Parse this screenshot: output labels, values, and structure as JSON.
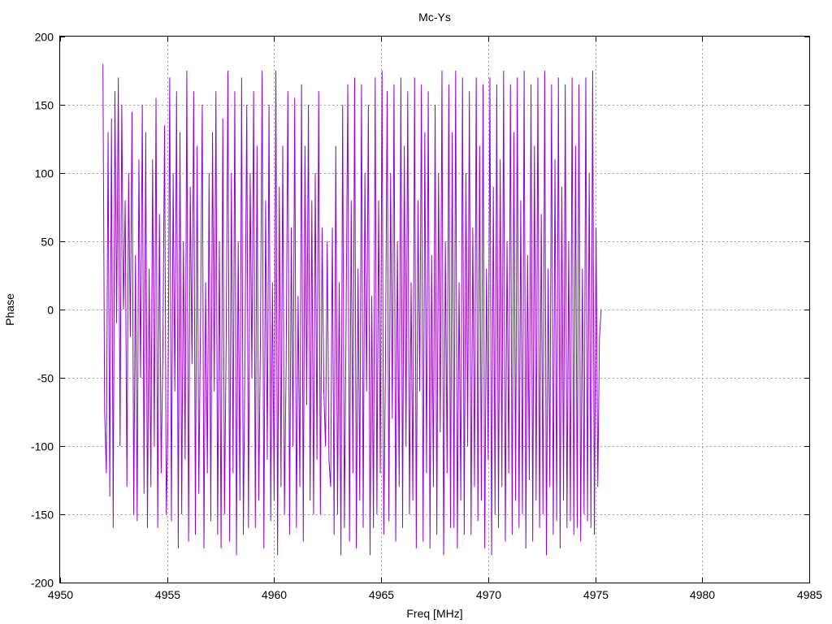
{
  "chart_data": {
    "type": "line",
    "title": "Mc-Ys",
    "xlabel": "Freq [MHz]",
    "ylabel": "Phase",
    "xlim": [
      4950,
      4985
    ],
    "ylim": [
      -200,
      200
    ],
    "x_ticks": [
      4950,
      4955,
      4960,
      4965,
      4970,
      4975,
      4980,
      4985
    ],
    "y_ticks": [
      -200,
      -150,
      -100,
      -50,
      0,
      50,
      100,
      150,
      200
    ],
    "grid": true,
    "legend": "none",
    "series": [
      {
        "color": "#9400d3",
        "x_start": 4952.0,
        "x_step": 0.08,
        "values": [
          180,
          -75,
          -120,
          130,
          -137,
          140,
          -160,
          160,
          -10,
          170,
          -100,
          150,
          0,
          80,
          -130,
          100,
          -20,
          145,
          -150,
          40,
          -155,
          110,
          -50,
          150,
          -135,
          130,
          -160,
          30,
          -130,
          110,
          -100,
          155,
          -160,
          70,
          -120,
          -30,
          135,
          -150,
          -80,
          170,
          -155,
          100,
          -60,
          160,
          -175,
          130,
          -150,
          50,
          -110,
          175,
          -170,
          90,
          -40,
          160,
          -165,
          120,
          -135,
          -10,
          150,
          -175,
          20,
          -120,
          100,
          -155,
          130,
          -60,
          160,
          -165,
          50,
          -175,
          140,
          -150,
          -20,
          175,
          -170,
          100,
          -120,
          160,
          -180,
          50,
          -140,
          170,
          -165,
          -30,
          150,
          -160,
          100,
          -50,
          160,
          -160,
          120,
          -140,
          -20,
          175,
          -175,
          80,
          -110,
          150,
          -155,
          20,
          -140,
          175,
          -180,
          90,
          -130,
          120,
          -150,
          -40,
          160,
          -165,
          60,
          -100,
          155,
          -160,
          10,
          -130,
          165,
          -170,
          120,
          -70,
          150,
          -140,
          80,
          -150,
          100,
          -110,
          160,
          -150,
          60,
          -60,
          -100,
          50,
          -110,
          -130,
          60,
          -165,
          120,
          -150,
          20,
          -180,
          150,
          -160,
          -10,
          165,
          -170,
          80,
          -120,
          170,
          -175,
          30,
          -140,
          165,
          -160,
          100,
          -60,
          150,
          -180,
          10,
          -160,
          170,
          -150,
          80,
          -120,
          175,
          -165,
          -40,
          160,
          -155,
          100,
          -80,
          165,
          -170,
          50,
          -130,
          170,
          -160,
          120,
          -100,
          160,
          -150,
          20,
          -140,
          170,
          -175,
          80,
          -60,
          165,
          -170,
          130,
          -120,
          160,
          -175,
          40,
          -130,
          150,
          -165,
          100,
          -90,
          175,
          -180,
          50,
          -120,
          165,
          -160,
          130,
          -160,
          175,
          -175,
          20,
          -140,
          170,
          -165,
          100,
          -100,
          160,
          -165,
          60,
          -130,
          170,
          -155,
          120,
          -140,
          165,
          -175,
          30,
          -110,
          170,
          -180,
          90,
          -150,
          165,
          -160,
          110,
          -130,
          175,
          -170,
          50,
          -120,
          165,
          -165,
          130,
          -140,
          170,
          -160,
          80,
          -150,
          175,
          -175,
          40,
          -125,
          165,
          -170,
          120,
          -140,
          170,
          -160,
          70,
          -150,
          175,
          -180,
          30,
          -130,
          165,
          -165,
          110,
          -155,
          170,
          -175,
          90,
          -140,
          165,
          -160,
          50,
          -155,
          170,
          -165,
          120,
          -160,
          165,
          -170,
          30,
          -150,
          170,
          -155,
          100,
          -160,
          175,
          -165,
          60,
          -130,
          -20,
          0
        ]
      }
    ]
  }
}
